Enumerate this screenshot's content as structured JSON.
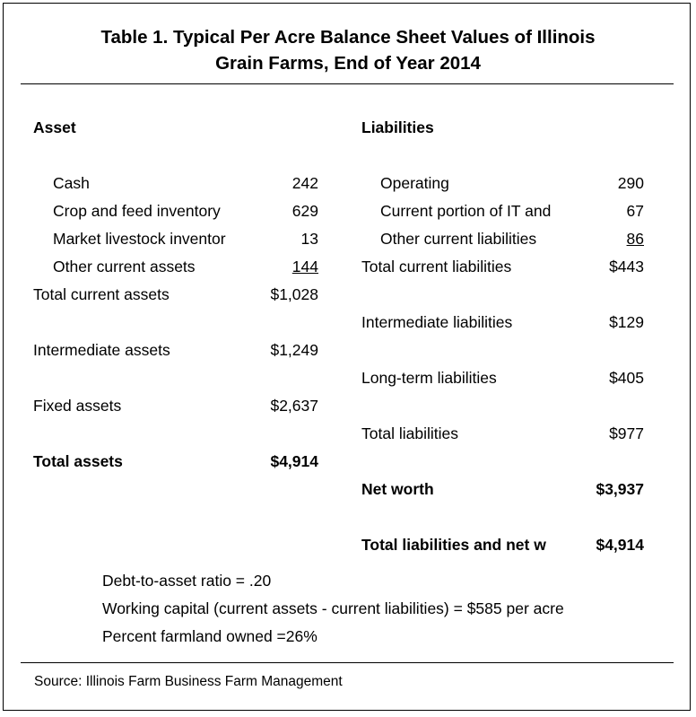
{
  "title": {
    "line1": "Table 1.  Typical Per Acre Balance Sheet Values of Illinois",
    "line2": "Grain Farms, End of Year 2014"
  },
  "assets": {
    "header": "Asset",
    "rows": [
      {
        "label": "Cash",
        "value": "242"
      },
      {
        "label": "Crop and feed inventory",
        "value": "629"
      },
      {
        "label": "Market livestock inventor",
        "value": "13"
      },
      {
        "label": "Other current assets",
        "value": "144"
      }
    ],
    "total_current": {
      "label": "Total current assets",
      "value": "$1,028"
    },
    "intermediate": {
      "label": "Intermediate assets",
      "value": "$1,249"
    },
    "fixed": {
      "label": "Fixed assets",
      "value": "$2,637"
    },
    "total": {
      "label": "Total assets",
      "value": "$4,914"
    }
  },
  "liabilities": {
    "header": "Liabilities",
    "rows": [
      {
        "label": "Operating",
        "value": "290"
      },
      {
        "label": "Current portion of IT and",
        "value": "67"
      },
      {
        "label": "Other current liabilities",
        "value": "86"
      }
    ],
    "total_current": {
      "label": "Total current liabilities",
      "value": "$443"
    },
    "intermediate": {
      "label": "Intermediate liabilities",
      "value": "$129"
    },
    "long_term": {
      "label": "Long-term liabilities",
      "value": "$405"
    },
    "total": {
      "label": "Total liabilities",
      "value": "$977"
    },
    "net_worth": {
      "label": "Net worth",
      "value": "$3,937"
    },
    "total_and_net_worth": {
      "label": "Total liabilities and net w",
      "value": "$4,914"
    }
  },
  "notes": {
    "debt_to_asset": "Debt-to-asset ratio = .20",
    "working_capital": "Working capital (current assets - current liabilities) = $585 per acre",
    "farmland_owned": "Percent farmland owned =26%"
  },
  "source": "Source:  Illinois Farm Business Farm Management"
}
